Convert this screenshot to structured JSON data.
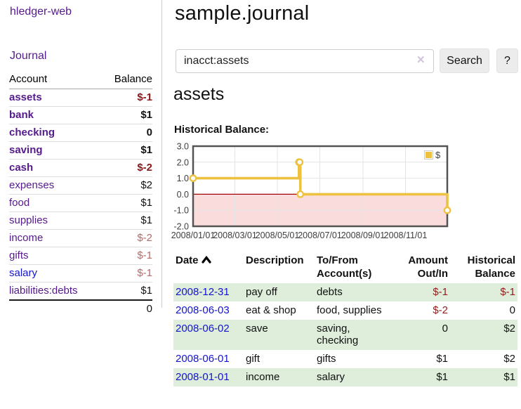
{
  "sidebar": {
    "app_title": "hledger-web",
    "nav": {
      "journal_label": "Journal"
    },
    "accounts_table": {
      "headers": {
        "account": "Account",
        "balance": "Balance"
      },
      "rows": [
        {
          "name": "assets",
          "balance": "$-1",
          "indent": 1,
          "bold": true,
          "negative": true,
          "blue_link": false
        },
        {
          "name": "bank",
          "balance": "$1",
          "indent": 2,
          "bold": true,
          "negative": false,
          "blue_link": false
        },
        {
          "name": "checking",
          "balance": "0",
          "indent": 3,
          "bold": true,
          "negative": false,
          "blue_link": false
        },
        {
          "name": "saving",
          "balance": "$1",
          "indent": 3,
          "bold": true,
          "negative": false,
          "blue_link": false
        },
        {
          "name": "cash",
          "balance": "$-2",
          "indent": 2,
          "bold": true,
          "negative": true,
          "blue_link": false
        },
        {
          "name": "expenses",
          "balance": "$2",
          "indent": 1,
          "bold": false,
          "negative": false,
          "blue_link": false
        },
        {
          "name": "food",
          "balance": "$1",
          "indent": 2,
          "bold": false,
          "negative": false,
          "blue_link": false
        },
        {
          "name": "supplies",
          "balance": "$1",
          "indent": 2,
          "bold": false,
          "negative": false,
          "blue_link": false
        },
        {
          "name": "income",
          "balance": "$-2",
          "indent": 1,
          "bold": false,
          "negative": true,
          "blue_link": false
        },
        {
          "name": "gifts",
          "balance": "$-1",
          "indent": 2,
          "bold": false,
          "negative": true,
          "blue_link": false
        },
        {
          "name": "salary",
          "balance": "$-1",
          "indent": 2,
          "bold": false,
          "negative": true,
          "blue_link": true
        },
        {
          "name": "liabilities:debts",
          "balance": "$1",
          "indent": 1,
          "bold": false,
          "negative": false,
          "blue_link": false
        }
      ],
      "total": "0"
    }
  },
  "header": {
    "title": "sample.journal"
  },
  "search": {
    "value": "inacct:assets",
    "clear_icon_glyph": "✕",
    "search_button": "Search",
    "help_button": "?"
  },
  "account_page": {
    "title": "assets",
    "chart_label": "Historical Balance:"
  },
  "chart_data": {
    "type": "line",
    "step": true,
    "title": "Historical Balance",
    "series": [
      {
        "name": "$",
        "color": "#EDC240",
        "points": [
          {
            "date": "2008-01-01",
            "day": 0,
            "value": 1
          },
          {
            "date": "2008-06-01",
            "day": 152,
            "value": 2
          },
          {
            "date": "2008-06-02",
            "day": 153,
            "value": 2
          },
          {
            "date": "2008-06-03",
            "day": 154,
            "value": 0
          },
          {
            "date": "2008-12-31",
            "day": 365,
            "value": -1
          }
        ]
      }
    ],
    "x_ticks": [
      {
        "label": "2008/01/01",
        "day": 0
      },
      {
        "label": "2008/03/01",
        "day": 60
      },
      {
        "label": "2008/05/01",
        "day": 121
      },
      {
        "label": "2008/07/01",
        "day": 182
      },
      {
        "label": "2008/09/01",
        "day": 244
      },
      {
        "label": "2008/11/01",
        "day": 305
      }
    ],
    "x_range_days": [
      0,
      365
    ],
    "y_ticks": [
      "3.0",
      "2.0",
      "1.0",
      "0.0",
      "-1.0",
      "-2.0"
    ],
    "ylim": [
      -2,
      3
    ],
    "grid": true,
    "legend": {
      "label": "$",
      "position": "top-right"
    },
    "colors": {
      "line": "#EDC240",
      "marker_fill": "#ffffff",
      "negative_region": "#fbdcdc",
      "zero_line": "#a40000",
      "border": "#545454",
      "gridline": "#e4e4e4",
      "tick_text": "#3d3d3d"
    }
  },
  "register_table": {
    "headers": {
      "date": "Date",
      "description": "Description",
      "accounts": "To/From\nAccount(s)",
      "amount": "Amount\nOut/In",
      "balance": "Historical\nBalance"
    },
    "sort": {
      "column": "date",
      "direction": "ascending"
    },
    "rows": [
      {
        "date": "2008-12-31",
        "description": "pay off",
        "accounts": "debts",
        "amount": "$-1",
        "balance": "$-1",
        "amount_negative": true,
        "balance_negative": true,
        "shade": true
      },
      {
        "date": "2008-06-03",
        "description": "eat & shop",
        "accounts": "food, supplies",
        "amount": "$-2",
        "balance": "0",
        "amount_negative": true,
        "balance_negative": false,
        "shade": false
      },
      {
        "date": "2008-06-02",
        "description": "save",
        "accounts": "saving, checking",
        "amount": "0",
        "balance": "$2",
        "amount_negative": false,
        "balance_negative": false,
        "shade": true
      },
      {
        "date": "2008-06-01",
        "description": "gift",
        "accounts": "gifts",
        "amount": "$1",
        "balance": "$2",
        "amount_negative": false,
        "balance_negative": false,
        "shade": false
      },
      {
        "date": "2008-01-01",
        "description": "income",
        "accounts": "salary",
        "amount": "$1",
        "balance": "$1",
        "amount_negative": false,
        "balance_negative": false,
        "shade": true
      }
    ]
  }
}
